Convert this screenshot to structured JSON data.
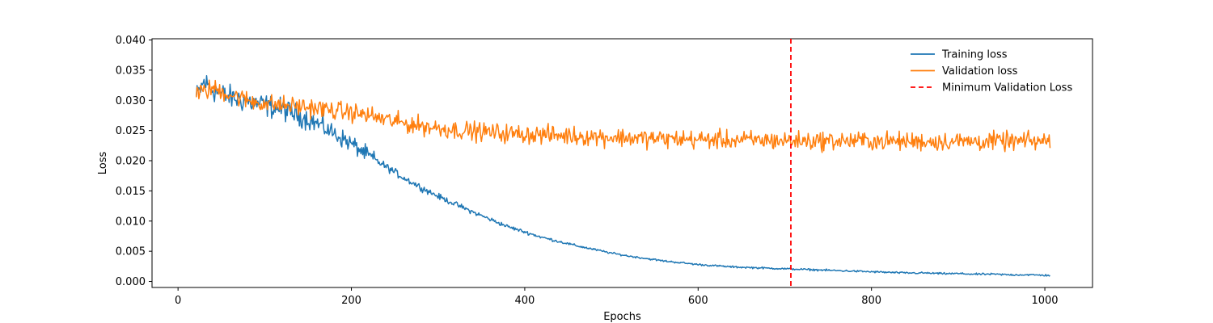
{
  "chart_data": {
    "type": "line",
    "title": "",
    "xlabel": "Epochs",
    "ylabel": "Loss",
    "xlim": [
      -30,
      1055
    ],
    "ylim": [
      -0.001,
      0.0402
    ],
    "xticks": [
      0,
      200,
      400,
      600,
      800,
      1000
    ],
    "yticks": [
      0.0,
      0.005,
      0.01,
      0.015,
      0.02,
      0.025,
      0.03,
      0.035,
      0.04
    ],
    "ytick_labels": [
      "0.000",
      "0.005",
      "0.010",
      "0.015",
      "0.020",
      "0.025",
      "0.030",
      "0.035",
      "0.040"
    ],
    "grid": false,
    "legend_position": "top-right",
    "series": [
      {
        "name": "Training loss",
        "color": "#1f77b4",
        "x_range": [
          21,
          1006
        ],
        "x": [
          21,
          30,
          40,
          50,
          60,
          80,
          100,
          120,
          140,
          160,
          180,
          200,
          220,
          240,
          260,
          280,
          300,
          320,
          340,
          360,
          380,
          400,
          420,
          440,
          460,
          480,
          500,
          520,
          540,
          560,
          580,
          600,
          620,
          640,
          660,
          680,
          700,
          720,
          740,
          760,
          780,
          800,
          820,
          840,
          860,
          880,
          900,
          920,
          940,
          960,
          980,
          1006
        ],
        "y": [
          0.0305,
          0.033,
          0.0318,
          0.031,
          0.0305,
          0.0298,
          0.0292,
          0.0285,
          0.0275,
          0.0262,
          0.0245,
          0.0228,
          0.0208,
          0.019,
          0.0172,
          0.0156,
          0.0141,
          0.0128,
          0.0115,
          0.0103,
          0.0091,
          0.0082,
          0.0073,
          0.0066,
          0.0059,
          0.0053,
          0.0047,
          0.0042,
          0.0038,
          0.0034,
          0.0031,
          0.0028,
          0.0026,
          0.0024,
          0.0023,
          0.0022,
          0.0021,
          0.002,
          0.0019,
          0.0018,
          0.0017,
          0.0016,
          0.0015,
          0.0014,
          0.0014,
          0.0013,
          0.0013,
          0.0012,
          0.0012,
          0.0011,
          0.0011,
          0.001
        ]
      },
      {
        "name": "Validation loss",
        "color": "#ff7f0e",
        "x_range": [
          21,
          1006
        ],
        "x": [
          21,
          40,
          60,
          80,
          100,
          120,
          140,
          160,
          180,
          200,
          220,
          240,
          260,
          280,
          300,
          320,
          340,
          360,
          380,
          400,
          420,
          440,
          460,
          480,
          500,
          520,
          540,
          560,
          580,
          600,
          620,
          640,
          660,
          680,
          700,
          720,
          740,
          760,
          780,
          800,
          820,
          840,
          860,
          880,
          900,
          920,
          940,
          960,
          980,
          1006
        ],
        "y": [
          0.031,
          0.032,
          0.031,
          0.03,
          0.0295,
          0.0292,
          0.029,
          0.0287,
          0.0283,
          0.028,
          0.0275,
          0.0268,
          0.0262,
          0.0258,
          0.0254,
          0.0251,
          0.0249,
          0.0247,
          0.0245,
          0.0244,
          0.0243,
          0.0242,
          0.0241,
          0.024,
          0.0239,
          0.0238,
          0.0237,
          0.0236,
          0.0236,
          0.0235,
          0.0235,
          0.0234,
          0.0234,
          0.0234,
          0.0233,
          0.0233,
          0.0233,
          0.0233,
          0.0233,
          0.0233,
          0.0232,
          0.0232,
          0.0232,
          0.0232,
          0.0232,
          0.0232,
          0.0232,
          0.0232,
          0.0232,
          0.0232
        ]
      },
      {
        "name": "Minimum Validation Loss",
        "color": "#ff0000",
        "style": "dashed-vertical",
        "x": 707
      }
    ]
  }
}
